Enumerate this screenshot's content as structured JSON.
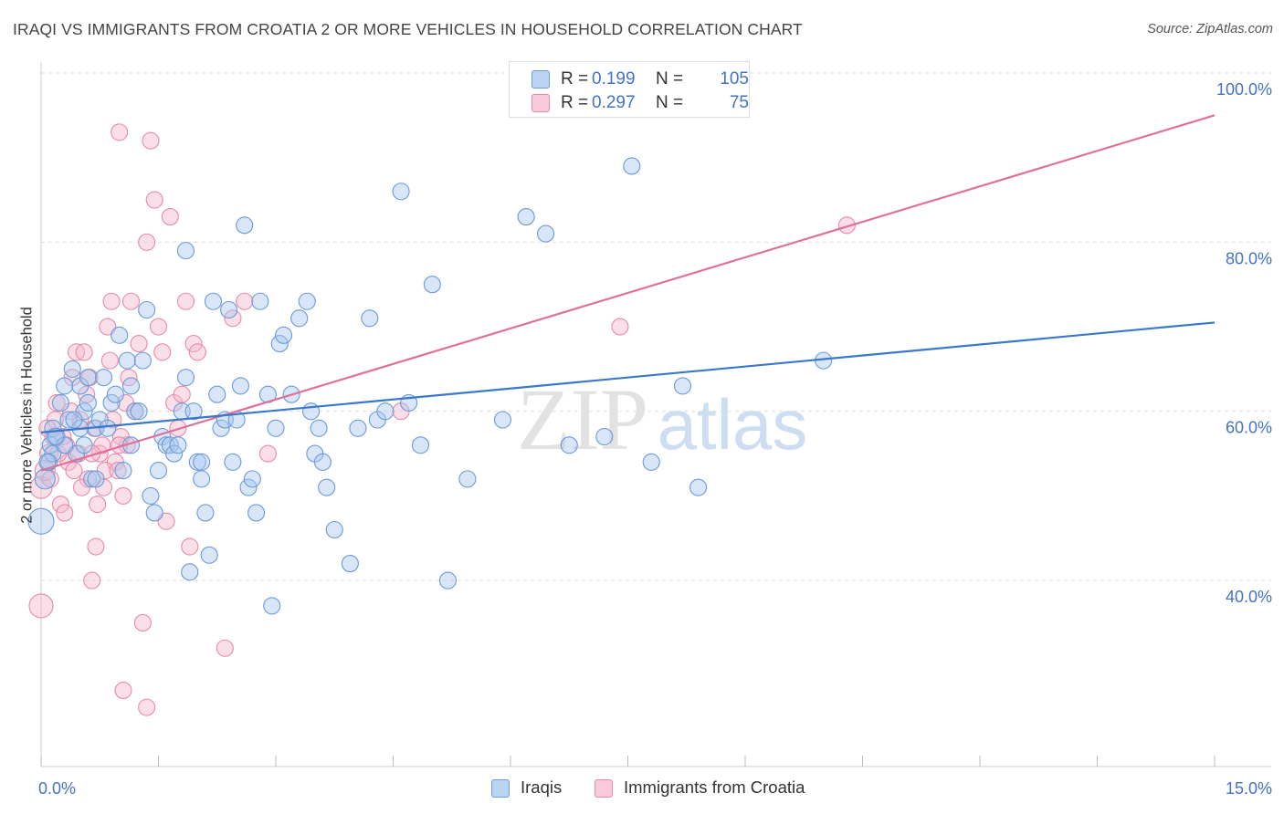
{
  "title": "IRAQI VS IMMIGRANTS FROM CROATIA 2 OR MORE VEHICLES IN HOUSEHOLD CORRELATION CHART",
  "source": "Source: ZipAtlas.com",
  "watermark": {
    "zip": "ZIP",
    "atlas": "atlas"
  },
  "legend_top": {
    "rows": [
      {
        "r_label": "R =",
        "r_value": "0.199",
        "n_label": "N =",
        "n_value": "105"
      },
      {
        "r_label": "R =",
        "r_value": "0.297",
        "n_label": "N =",
        "n_value": "75"
      }
    ]
  },
  "legend_bottom": {
    "items": [
      "Iraqis",
      "Immigrants from Croatia"
    ]
  },
  "colors": {
    "blue_fill": "#a9c7ef",
    "blue_stroke": "#6a9ad8",
    "blue_line": "#3a78cc",
    "pink_fill": "#f5b8cb",
    "pink_stroke": "#e98aa8",
    "pink_line": "#e0709a",
    "tick_label": "#4472c4",
    "grid": "#dddddd"
  },
  "chart_data": {
    "type": "scatter",
    "title": "IRAQI VS IMMIGRANTS FROM CROATIA 2 OR MORE VEHICLES IN HOUSEHOLD CORRELATION CHART",
    "xlabel": "",
    "ylabel": "2 or more Vehicles in Household",
    "xlim": [
      0,
      15
    ],
    "ylim": [
      18,
      100
    ],
    "x_tick_labels": [
      "0.0%",
      "15.0%"
    ],
    "y_ticks": [
      40,
      60,
      80,
      100
    ],
    "y_tick_labels": [
      "40.0%",
      "60.0%",
      "80.0%",
      "100.0%"
    ],
    "grid": true,
    "legend_placement": "top-center",
    "series": [
      {
        "name": "Iraqis",
        "r": 0.199,
        "n": 105,
        "trend": {
          "x": [
            0,
            15
          ],
          "y": [
            57.5,
            70.5
          ]
        },
        "points": [
          [
            0.0,
            47,
            14
          ],
          [
            0.05,
            52,
            11
          ],
          [
            0.1,
            54,
            9
          ],
          [
            0.12,
            56,
            9
          ],
          [
            0.15,
            58,
            9
          ],
          [
            0.15,
            55,
            9
          ],
          [
            0.2,
            57,
            9
          ],
          [
            0.25,
            61,
            9
          ],
          [
            0.3,
            63,
            9
          ],
          [
            0.35,
            59,
            9
          ],
          [
            0.4,
            65,
            9
          ],
          [
            0.45,
            55,
            9
          ],
          [
            0.5,
            63,
            9
          ],
          [
            0.55,
            60,
            9
          ],
          [
            0.6,
            61,
            9
          ],
          [
            0.6,
            64,
            9
          ],
          [
            0.65,
            52,
            9
          ],
          [
            0.7,
            58,
            9
          ],
          [
            0.75,
            59,
            9
          ],
          [
            0.8,
            64,
            9
          ],
          [
            0.9,
            61,
            9
          ],
          [
            0.95,
            62,
            9
          ],
          [
            1.0,
            69,
            9
          ],
          [
            1.05,
            53,
            9
          ],
          [
            1.1,
            66,
            9
          ],
          [
            1.15,
            63,
            9
          ],
          [
            1.2,
            60,
            9
          ],
          [
            1.3,
            66,
            9
          ],
          [
            1.35,
            72,
            9
          ],
          [
            1.4,
            50,
            9
          ],
          [
            1.45,
            48,
            9
          ],
          [
            1.5,
            53,
            9
          ],
          [
            1.55,
            57,
            9
          ],
          [
            1.6,
            56,
            9
          ],
          [
            1.65,
            56,
            9
          ],
          [
            1.7,
            55,
            9
          ],
          [
            1.75,
            56,
            9
          ],
          [
            1.8,
            60,
            9
          ],
          [
            1.85,
            64,
            9
          ],
          [
            1.85,
            79,
            9
          ],
          [
            1.9,
            41,
            9
          ],
          [
            1.95,
            60,
            9
          ],
          [
            2.0,
            54,
            9
          ],
          [
            2.05,
            52,
            9
          ],
          [
            2.1,
            48,
            9
          ],
          [
            2.15,
            43,
            9
          ],
          [
            2.2,
            73,
            9
          ],
          [
            2.25,
            62,
            9
          ],
          [
            2.3,
            58,
            9
          ],
          [
            2.35,
            59,
            9
          ],
          [
            2.4,
            72,
            9
          ],
          [
            2.45,
            54,
            9
          ],
          [
            2.5,
            59,
            9
          ],
          [
            2.55,
            63,
            9
          ],
          [
            2.6,
            82,
            9
          ],
          [
            2.65,
            51,
            9
          ],
          [
            2.7,
            52,
            9
          ],
          [
            2.75,
            48,
            9
          ],
          [
            2.8,
            73,
            9
          ],
          [
            2.9,
            62,
            9
          ],
          [
            2.95,
            37,
            9
          ],
          [
            3.0,
            58,
            9
          ],
          [
            3.05,
            68,
            9
          ],
          [
            3.1,
            69,
            9
          ],
          [
            3.2,
            62,
            9
          ],
          [
            3.3,
            71,
            9
          ],
          [
            3.4,
            73,
            9
          ],
          [
            3.45,
            60,
            9
          ],
          [
            3.5,
            55,
            9
          ],
          [
            3.55,
            58,
            9
          ],
          [
            3.6,
            54,
            9
          ],
          [
            3.65,
            51,
            9
          ],
          [
            3.75,
            46,
            9
          ],
          [
            3.95,
            42,
            9
          ],
          [
            4.05,
            58,
            9
          ],
          [
            4.2,
            71,
            9
          ],
          [
            4.3,
            59,
            9
          ],
          [
            4.4,
            60,
            9
          ],
          [
            4.6,
            86,
            9
          ],
          [
            4.7,
            61,
            9
          ],
          [
            4.85,
            56,
            9
          ],
          [
            5.0,
            75,
            9
          ],
          [
            5.2,
            40,
            9
          ],
          [
            5.45,
            52,
            9
          ],
          [
            5.9,
            59,
            9
          ],
          [
            6.2,
            83,
            9
          ],
          [
            6.45,
            81,
            9
          ],
          [
            6.75,
            56,
            9
          ],
          [
            7.2,
            57,
            9
          ],
          [
            7.55,
            89,
            9
          ],
          [
            7.8,
            54,
            9
          ],
          [
            8.2,
            63,
            9
          ],
          [
            8.4,
            51,
            9
          ],
          [
            10.0,
            66,
            9
          ],
          [
            0.3,
            56,
            9
          ],
          [
            0.5,
            58,
            9
          ],
          [
            0.85,
            58,
            9
          ],
          [
            1.25,
            60,
            9
          ],
          [
            0.08,
            54,
            9
          ],
          [
            0.18,
            57,
            9
          ],
          [
            0.42,
            59,
            9
          ],
          [
            0.7,
            52,
            9
          ],
          [
            1.15,
            56,
            9
          ],
          [
            2.05,
            54,
            9
          ],
          [
            0.55,
            56,
            9
          ]
        ]
      },
      {
        "name": "Immigrants from Croatia",
        "r": 0.297,
        "n": 75,
        "trend": {
          "x": [
            0,
            15
          ],
          "y": [
            53,
            95
          ]
        },
        "points": [
          [
            0.0,
            37,
            13
          ],
          [
            0.0,
            51,
            12
          ],
          [
            0.05,
            53,
            11
          ],
          [
            0.1,
            55,
            10
          ],
          [
            0.15,
            57,
            9
          ],
          [
            0.2,
            61,
            9
          ],
          [
            0.25,
            49,
            9
          ],
          [
            0.3,
            48,
            9
          ],
          [
            0.35,
            54,
            9
          ],
          [
            0.4,
            64,
            9
          ],
          [
            0.45,
            67,
            9
          ],
          [
            0.5,
            59,
            9
          ],
          [
            0.55,
            67,
            9
          ],
          [
            0.6,
            52,
            9
          ],
          [
            0.65,
            40,
            9
          ],
          [
            0.7,
            44,
            9
          ],
          [
            0.75,
            55,
            9
          ],
          [
            0.8,
            51,
            9
          ],
          [
            0.85,
            70,
            9
          ],
          [
            0.9,
            73,
            9
          ],
          [
            0.95,
            54,
            9
          ],
          [
            1.0,
            93,
            9
          ],
          [
            1.05,
            50,
            9
          ],
          [
            1.1,
            56,
            9
          ],
          [
            1.15,
            73,
            9
          ],
          [
            1.2,
            60,
            9
          ],
          [
            1.25,
            68,
            9
          ],
          [
            1.3,
            35,
            9
          ],
          [
            1.35,
            80,
            9
          ],
          [
            1.4,
            92,
            9
          ],
          [
            1.45,
            85,
            9
          ],
          [
            1.5,
            70,
            9
          ],
          [
            1.55,
            67,
            9
          ],
          [
            1.6,
            47,
            9
          ],
          [
            1.65,
            83,
            9
          ],
          [
            1.7,
            61,
            9
          ],
          [
            1.75,
            58,
            9
          ],
          [
            1.8,
            62,
            9
          ],
          [
            1.85,
            73,
            9
          ],
          [
            1.9,
            44,
            9
          ],
          [
            1.95,
            68,
            9
          ],
          [
            2.0,
            67,
            9
          ],
          [
            2.35,
            32,
            9
          ],
          [
            2.45,
            71,
            9
          ],
          [
            2.6,
            73,
            9
          ],
          [
            2.9,
            55,
            9
          ],
          [
            1.05,
            27,
            9
          ],
          [
            1.35,
            25,
            9
          ],
          [
            4.6,
            60,
            9
          ],
          [
            7.4,
            70,
            9
          ],
          [
            10.3,
            82,
            9
          ],
          [
            0.12,
            52,
            9
          ],
          [
            0.22,
            55,
            9
          ],
          [
            0.28,
            57,
            9
          ],
          [
            0.32,
            56,
            9
          ],
          [
            0.38,
            60,
            9
          ],
          [
            0.48,
            55,
            9
          ],
          [
            0.52,
            51,
            9
          ],
          [
            0.58,
            62,
            9
          ],
          [
            0.62,
            64,
            9
          ],
          [
            0.68,
            58,
            9
          ],
          [
            0.72,
            49,
            9
          ],
          [
            0.78,
            56,
            9
          ],
          [
            0.82,
            53,
            9
          ],
          [
            0.88,
            66,
            9
          ],
          [
            0.92,
            59,
            9
          ],
          [
            0.98,
            53,
            9
          ],
          [
            1.02,
            57,
            9
          ],
          [
            1.08,
            61,
            9
          ],
          [
            1.12,
            64,
            9
          ],
          [
            0.42,
            53,
            9
          ],
          [
            0.18,
            59,
            9
          ],
          [
            0.08,
            58,
            9
          ],
          [
            0.65,
            55,
            9
          ],
          [
            1.0,
            56,
            9
          ]
        ]
      }
    ]
  }
}
